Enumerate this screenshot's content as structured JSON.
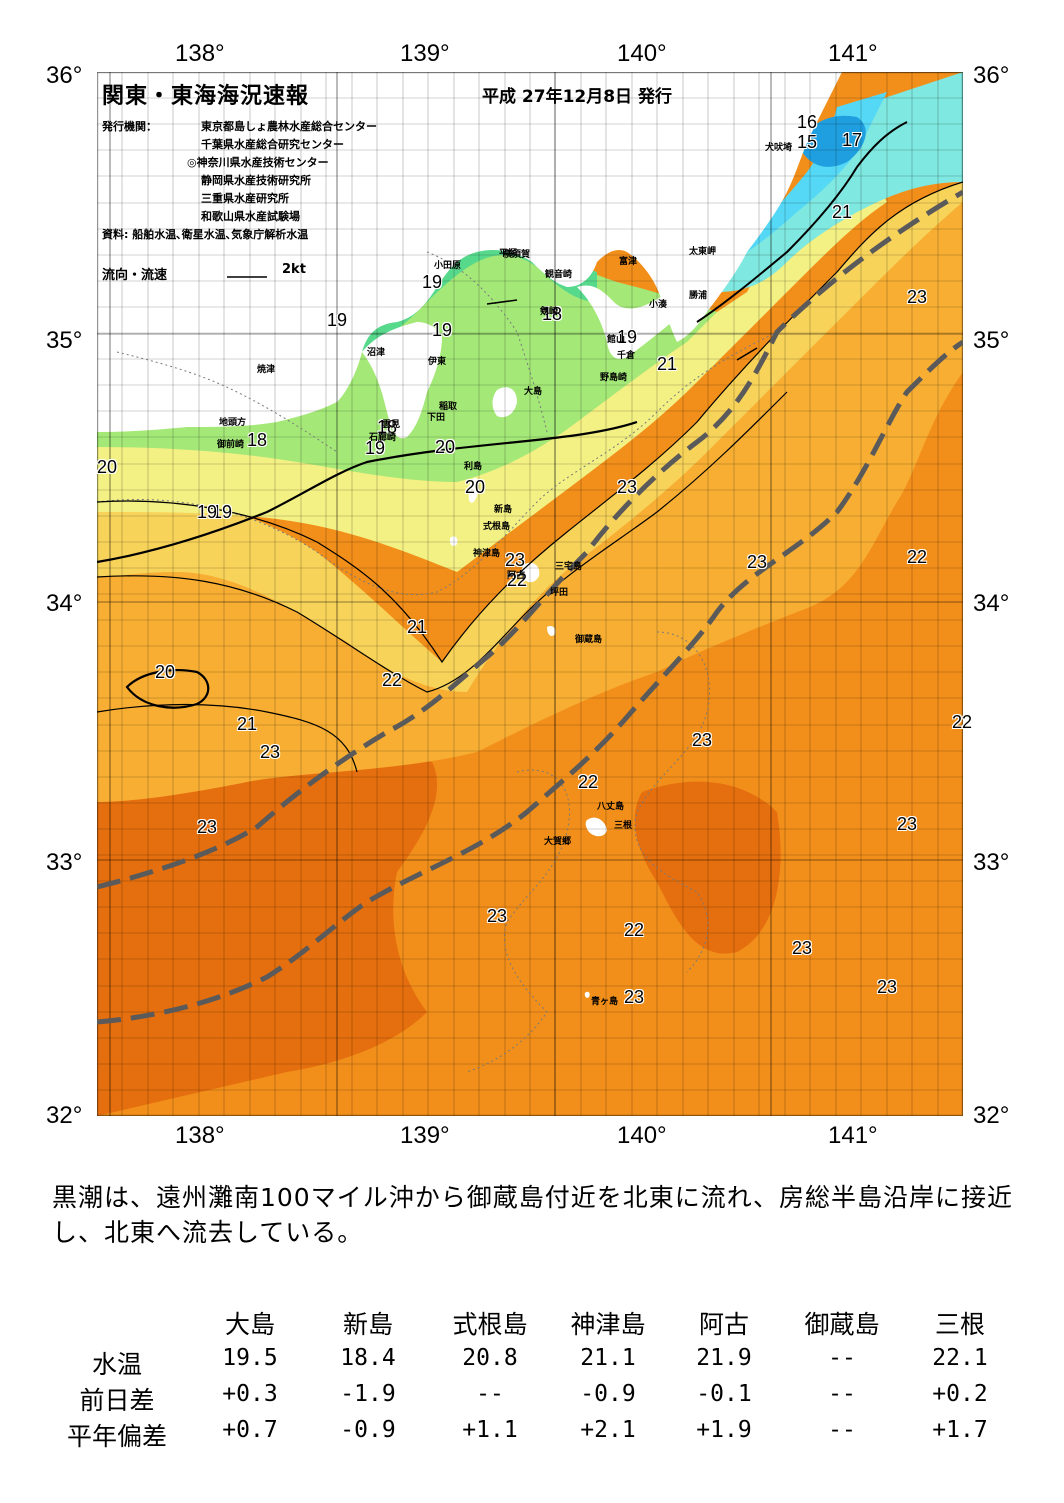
{
  "axes": {
    "lon_top": [
      "138°",
      "139°",
      "140°",
      "141°"
    ],
    "lon_bottom": [
      "138°",
      "139°",
      "140°",
      "141°"
    ],
    "lat_left": [
      "36°",
      "35°",
      "34°",
      "33°",
      "32°"
    ],
    "lat_right": [
      "36°",
      "35°",
      "34°",
      "33°",
      "32°"
    ]
  },
  "header": {
    "title": "関東・東海海況速報",
    "issue_date": "平成 27年12月8日 発行",
    "issuer_label": "発行機関：",
    "issuers": [
      "東京都島しょ農林水産総合センター",
      "千葉県水産総合研究センター",
      "◎神奈川県水産技術センター",
      "静岡県水産技術研究所",
      "三重県水産研究所",
      "和歌山県水産試験場"
    ],
    "source": "資料: 船舶水温､衛星水温､気象庁解析水温",
    "flow_label": "流向・流速",
    "flow_scale": "2kt"
  },
  "map": {
    "colors": {
      "t15": "#1f9fe0",
      "t16": "#55d8f5",
      "t17": "#7fe8e0",
      "t18": "#57d98c",
      "t19": "#a4e878",
      "t20": "#f3f084",
      "t21": "#f8d35a",
      "t22": "#f7ae33",
      "t23": "#f28f1a",
      "t24": "#e56f0e",
      "land": "#ffffff",
      "kuroshio": "#5a5a5a"
    },
    "temp_labels": [
      {
        "t": "16"
      },
      {
        "t": "15"
      },
      {
        "t": "17"
      },
      {
        "t": "21"
      },
      {
        "t": "23"
      },
      {
        "t": "19"
      },
      {
        "t": "18"
      },
      {
        "t": "19"
      },
      {
        "t": "21"
      },
      {
        "t": "19"
      },
      {
        "t": "19"
      },
      {
        "t": "20"
      },
      {
        "t": "18"
      },
      {
        "t": "19"
      },
      {
        "t": "18"
      },
      {
        "t": "20"
      },
      {
        "t": "19"
      },
      {
        "t": "23"
      },
      {
        "t": "20"
      },
      {
        "t": "23"
      },
      {
        "t": "22"
      },
      {
        "t": "23"
      },
      {
        "t": "22"
      },
      {
        "t": "21"
      },
      {
        "t": "20"
      },
      {
        "t": "22"
      },
      {
        "t": "21"
      },
      {
        "t": "23"
      },
      {
        "t": "22"
      },
      {
        "t": "23"
      },
      {
        "t": "23"
      },
      {
        "t": "22"
      },
      {
        "t": "23"
      },
      {
        "t": "22"
      },
      {
        "t": "23"
      },
      {
        "t": "23"
      },
      {
        "t": "23"
      },
      {
        "t": "23"
      },
      {
        "t": "19"
      }
    ],
    "places": [
      "犬吠埼",
      "太東岬",
      "勝浦",
      "小湊",
      "富津",
      "館山",
      "千倉",
      "野島崎",
      "横須賀",
      "観音崎",
      "平塚",
      "剱崎",
      "小田原",
      "沼津",
      "伊東",
      "稲取",
      "下田",
      "石廊崎",
      "雲見",
      "焼津",
      "地頭方",
      "御前崎",
      "大島",
      "利島",
      "新島",
      "式根島",
      "神津島",
      "三宅島",
      "阿古",
      "坪田",
      "御蔵島",
      "八丈島",
      "三根",
      "大賀郷",
      "青ヶ島"
    ]
  },
  "summary": "黒潮は、遠州灘南100マイル沖から御蔵島付近を北東に流れ、房総半島沿岸に接近し、北東へ流去している。",
  "table": {
    "columns": [
      "大島",
      "新島",
      "式根島",
      "神津島",
      "阿古",
      "御蔵島",
      "三根"
    ],
    "rows": [
      {
        "label": "水温",
        "values": [
          "19.5",
          "18.4",
          "20.8",
          "21.1",
          "21.9",
          "--",
          "22.1"
        ]
      },
      {
        "label": "前日差",
        "values": [
          "+0.3",
          "-1.9",
          "--",
          "-0.9",
          "-0.1",
          "--",
          "+0.2"
        ]
      },
      {
        "label": "平年偏差",
        "values": [
          "+0.7",
          "-0.9",
          "+1.1",
          "+2.1",
          "+1.9",
          "--",
          "+1.7"
        ]
      }
    ]
  }
}
